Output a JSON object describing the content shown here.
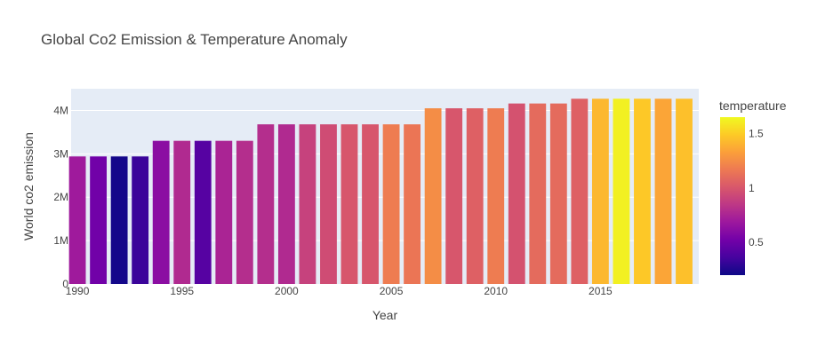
{
  "chart_data": {
    "type": "bar",
    "title": "Global Co2 Emission & Temperature Anomaly",
    "xlabel": "Year",
    "ylabel": "World co2 emission",
    "x": [
      1990,
      1991,
      1992,
      1993,
      1994,
      1995,
      1996,
      1997,
      1998,
      1999,
      2000,
      2001,
      2002,
      2003,
      2004,
      2005,
      2006,
      2007,
      2008,
      2009,
      2010,
      2011,
      2012,
      2013,
      2014,
      2015,
      2016,
      2017,
      2018,
      2019
    ],
    "values": [
      2940000,
      2940000,
      2940000,
      2940000,
      3300000,
      3300000,
      3300000,
      3300000,
      3300000,
      3680000,
      3680000,
      3680000,
      3680000,
      3680000,
      3680000,
      3680000,
      3680000,
      4050000,
      4050000,
      4050000,
      4050000,
      4160000,
      4160000,
      4160000,
      4270000,
      4270000,
      4270000,
      4270000,
      4270000,
      4270000
    ],
    "color_values": [
      0.7,
      0.52,
      0.22,
      0.33,
      0.62,
      0.78,
      0.42,
      0.75,
      0.8,
      0.8,
      0.78,
      0.9,
      0.95,
      1.0,
      1.0,
      1.18,
      1.15,
      1.25,
      1.0,
      1.05,
      1.18,
      0.98,
      1.1,
      1.1,
      1.05,
      1.42,
      1.62,
      1.48,
      1.35,
      1.45
    ],
    "xticks": [
      1990,
      1995,
      2000,
      2005,
      2010,
      2015
    ],
    "yticks": [
      0,
      1000000,
      2000000,
      3000000,
      4000000
    ],
    "ytick_labels": [
      "0",
      "1M",
      "2M",
      "3M",
      "4M"
    ],
    "xlim": [
      1989.7,
      2019.7
    ],
    "ylim": [
      0,
      4500000
    ],
    "grid": true,
    "colorbar": {
      "title": "temperature",
      "range": [
        0.2,
        1.65
      ],
      "ticks": [
        0.5,
        1,
        1.5
      ],
      "tick_labels": [
        "0.5",
        "1",
        "1.5"
      ],
      "placement": "right",
      "colorscale": [
        "#0d0887",
        "#46039f",
        "#7201a8",
        "#9c179e",
        "#bd3786",
        "#d8576b",
        "#ed7953",
        "#fb9f3a",
        "#fdca26",
        "#f0f921"
      ]
    },
    "colors": {
      "plot_background": "#e5ecf6",
      "grid": "#ffffff",
      "text": "#444444"
    }
  }
}
